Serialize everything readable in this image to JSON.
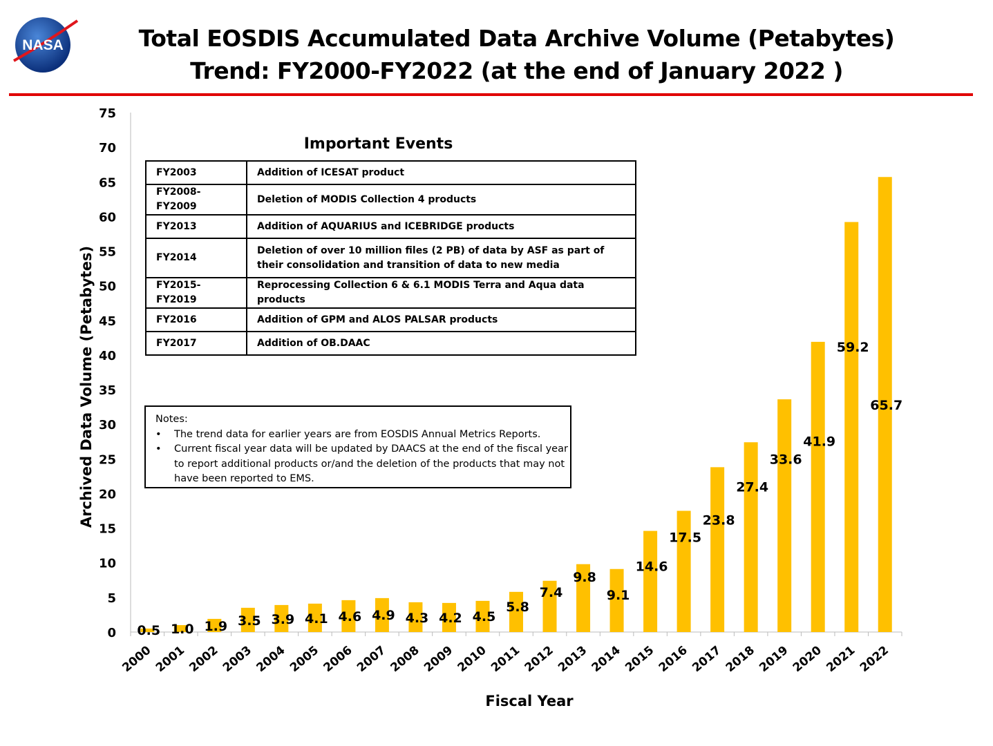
{
  "header": {
    "title_line1": "Total EOSDIS Accumulated Data Archive Volume (Petabytes)",
    "title_line2": "Trend: FY2000-FY2022 (at the end of January 2022 )",
    "logo_text": "NASA",
    "rule_color": "#e00000"
  },
  "events": {
    "title": "Important Events",
    "rows": [
      {
        "period": "FY2003",
        "event": "Addition of ICESAT product"
      },
      {
        "period": "FY2008-FY2009",
        "event": "Deletion of  MODIS Collection 4 products"
      },
      {
        "period": "FY2013",
        "event": "Addition of AQUARIUS and ICEBRIDGE products"
      },
      {
        "period": "FY2014",
        "event": "Deletion of over 10 million files (2 PB) of data by ASF as part of their consolidation and transition of data to new media"
      },
      {
        "period": "FY2015-FY2019",
        "event": "Reprocessing  Collection 6 & 6.1 MODIS Terra and Aqua data products"
      },
      {
        "period": "FY2016",
        "event": "Addition of GPM and ALOS PALSAR products"
      },
      {
        "period": "FY2017",
        "event": "Addition of OB.DAAC"
      }
    ]
  },
  "notes": {
    "heading": "Notes:",
    "items": [
      "The trend data for earlier years are from EOSDIS Annual Metrics Reports.",
      "Current fiscal year data will be updated by DAACS at the end of the fiscal year to report additional products or/and the deletion of the products that may not have been reported to EMS."
    ]
  },
  "chart_data": {
    "type": "bar",
    "xlabel": "Fiscal Year",
    "ylabel": "Archived Data Volume (Petabytes)",
    "ylim": [
      0,
      75
    ],
    "yticks": [
      0,
      5,
      10,
      15,
      20,
      25,
      30,
      35,
      40,
      45,
      50,
      55,
      60,
      65,
      70,
      75
    ],
    "grid": false,
    "bar_color": "#ffc000",
    "categories": [
      "2000",
      "2001",
      "2002",
      "2003",
      "2004",
      "2005",
      "2006",
      "2007",
      "2008",
      "2009",
      "2010",
      "2011",
      "2012",
      "2013",
      "2014",
      "2015",
      "2016",
      "2017",
      "2018",
      "2019",
      "2020",
      "2021",
      "2022"
    ],
    "values": [
      0.5,
      1.0,
      1.9,
      3.5,
      3.9,
      4.1,
      4.6,
      4.9,
      4.3,
      4.2,
      4.5,
      5.8,
      7.4,
      9.8,
      9.1,
      14.6,
      17.5,
      23.8,
      27.4,
      33.6,
      41.9,
      59.2,
      65.7
    ],
    "labels": [
      "0.5",
      "1.0",
      "1.9",
      "3.5",
      "3.9",
      "4.1",
      "4.6",
      "4.9",
      "4.3",
      "4.2",
      "4.5",
      "5.8",
      "7.4",
      "9.8",
      "9.1",
      "14.6",
      "17.5",
      "23.8",
      "27.4",
      "33.6",
      "41.9",
      "59.2",
      "65.7"
    ]
  }
}
